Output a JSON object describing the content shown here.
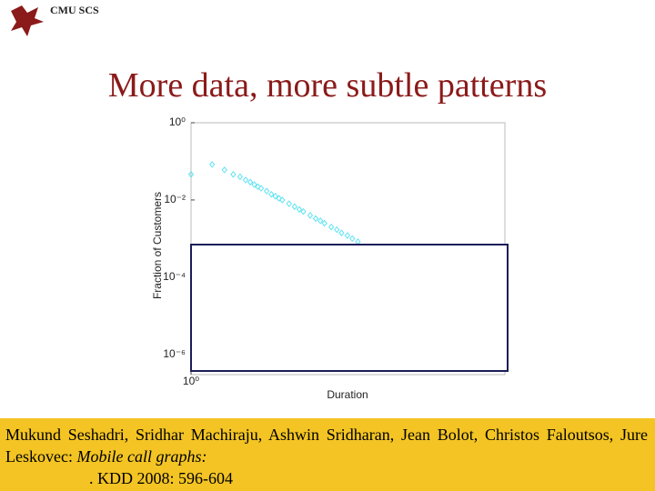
{
  "header": {
    "org": "CMU SCS"
  },
  "title": "More data, more subtle patterns",
  "chart_data": {
    "type": "scatter",
    "xlabel": "Duration",
    "ylabel": "Fraction of Customers",
    "x": [
      1,
      2,
      3,
      4,
      5,
      6,
      7,
      8,
      9,
      10,
      12,
      14,
      16,
      18,
      20,
      25,
      30,
      35,
      40,
      50,
      60,
      70,
      80,
      100,
      120,
      140,
      170,
      200,
      240
    ],
    "values": [
      0.046,
      0.083,
      0.06,
      0.046,
      0.04,
      0.033,
      0.029,
      0.025,
      0.022,
      0.02,
      0.017,
      0.014,
      0.0125,
      0.011,
      0.01,
      0.008,
      0.0067,
      0.0057,
      0.005,
      0.004,
      0.0033,
      0.0029,
      0.0025,
      0.002,
      0.0017,
      0.0014,
      0.0012,
      0.001,
      0.00083
    ],
    "color": "#5ee3f2",
    "log_x": true,
    "log_y": true,
    "grid": false,
    "xlim": [
      1,
      30000
    ],
    "ylim": [
      3e-07,
      1
    ],
    "xticks": [
      {
        "value": 1,
        "label": "10⁰"
      }
    ],
    "yticks": [
      {
        "value": 1,
        "label": "10⁰"
      },
      {
        "value": 0.01,
        "label": "10⁻²"
      },
      {
        "value": 0.0001,
        "label": "10⁻⁴"
      },
      {
        "value": 1e-06,
        "label": "10⁻⁶"
      }
    ]
  },
  "citation": {
    "authors": "Mukund Seshadri, Sridhar Machiraju, Ashwin Sridharan, Jean Bolot, Christos Faloutsos, Jure Leskovec:",
    "paper": "Mobile call graphs:",
    "venue": ". KDD 2008: 596-604"
  }
}
